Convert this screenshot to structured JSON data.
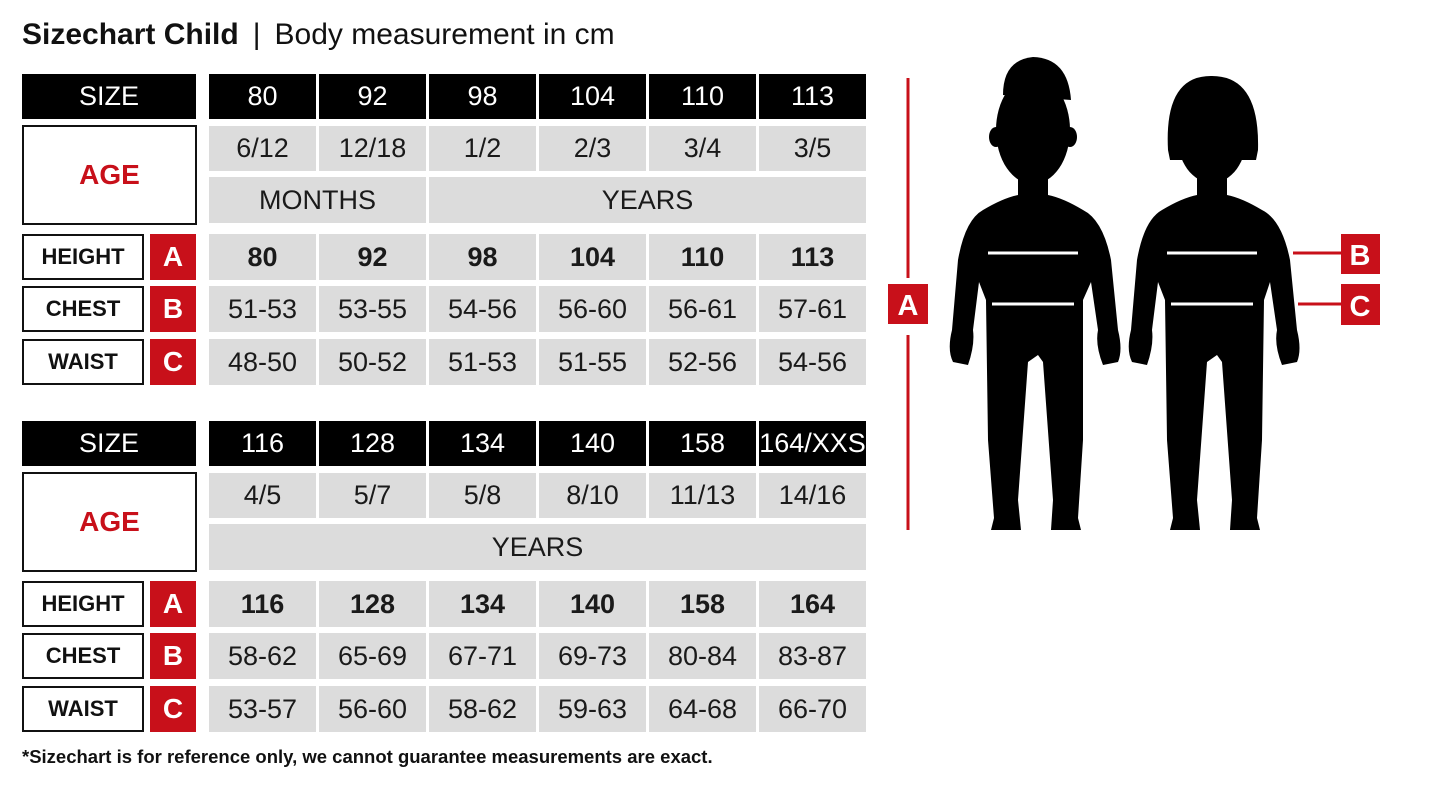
{
  "title": {
    "main": "Sizechart Child",
    "separator": "|",
    "subtitle": "Body measurement in cm"
  },
  "labels": {
    "size": "SIZE",
    "age": "AGE",
    "height": "HEIGHT",
    "chest": "CHEST",
    "waist": "WAIST",
    "letter_height": "A",
    "letter_chest": "B",
    "letter_waist": "C"
  },
  "tables": [
    {
      "sizes": [
        "80",
        "92",
        "98",
        "104",
        "110",
        "113"
      ],
      "ages": [
        "6/12",
        "12/18",
        "1/2",
        "2/3",
        "3/4",
        "3/5"
      ],
      "age_units": [
        {
          "label": "MONTHS",
          "span": 2
        },
        {
          "label": "YEARS",
          "span": 4
        }
      ],
      "height": [
        "80",
        "92",
        "98",
        "104",
        "110",
        "113"
      ],
      "chest": [
        "51-53",
        "53-55",
        "54-56",
        "56-60",
        "56-61",
        "57-61"
      ],
      "waist": [
        "48-50",
        "50-52",
        "51-53",
        "51-55",
        "52-56",
        "54-56"
      ]
    },
    {
      "sizes": [
        "116",
        "128",
        "134",
        "140",
        "158",
        "164/XXS"
      ],
      "ages": [
        "4/5",
        "5/7",
        "5/8",
        "8/10",
        "11/13",
        "14/16"
      ],
      "age_units": [
        {
          "label": "YEARS",
          "span": 6
        }
      ],
      "height": [
        "116",
        "128",
        "134",
        "140",
        "158",
        "164"
      ],
      "chest": [
        "58-62",
        "65-69",
        "67-71",
        "69-73",
        "80-84",
        "83-87"
      ],
      "waist": [
        "53-57",
        "56-60",
        "58-62",
        "59-63",
        "64-68",
        "66-70"
      ]
    }
  ],
  "footnote": "*Sizechart is for reference only, we cannot guarantee measurements are exact.",
  "figure": {
    "height_marker": "A",
    "chest_marker": "B",
    "waist_marker": "C",
    "accent_color": "#c8101a",
    "silhouettes": [
      "boy-silhouette",
      "girl-silhouette"
    ]
  }
}
